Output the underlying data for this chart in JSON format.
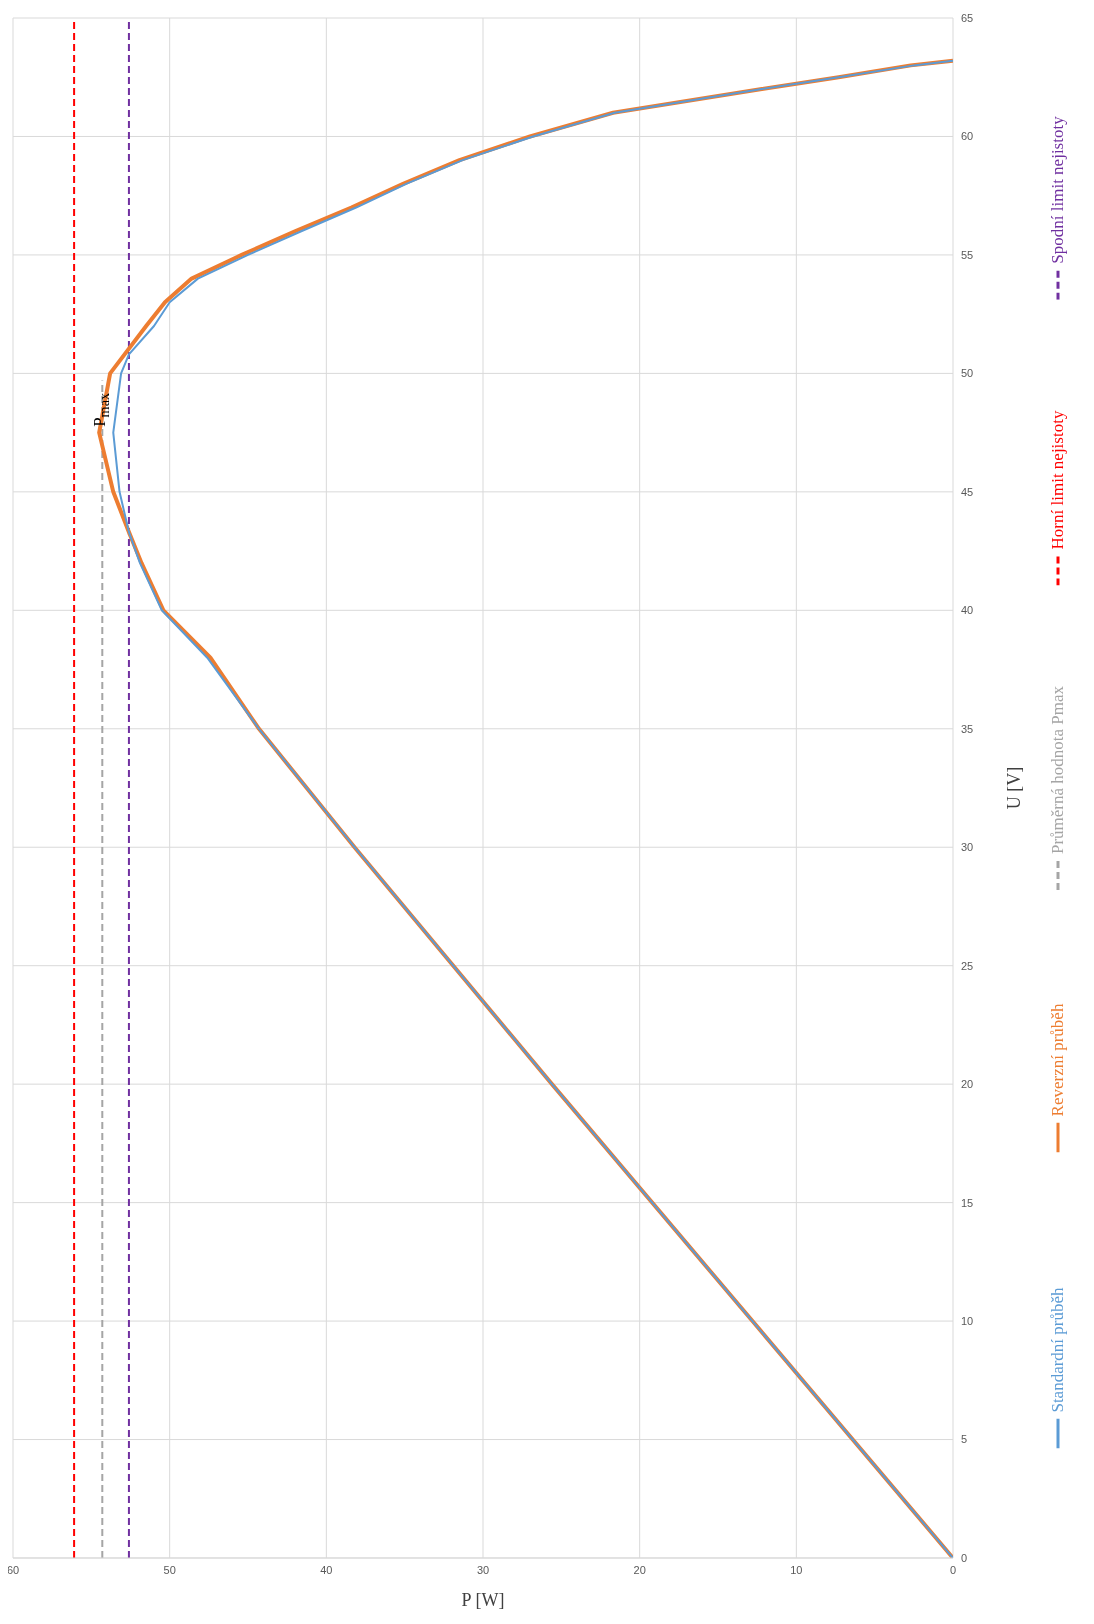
{
  "chart_data": {
    "type": "line",
    "xlabel": "P [W]",
    "ylabel": "U [V]",
    "xlim": [
      60,
      0
    ],
    "xticks": [
      60,
      50,
      40,
      30,
      20,
      10,
      0
    ],
    "ylim": [
      0,
      65
    ],
    "yticks": [
      0,
      5,
      10,
      15,
      20,
      25,
      30,
      35,
      40,
      45,
      50,
      55,
      60,
      65
    ],
    "grid": true,
    "legend": "right",
    "marker": "none",
    "annotations": [
      "P$_{max}$"
    ],
    "series": [
      {
        "name": "Standardní průběh",
        "color": "#5b9bd5",
        "line_style": "solid",
        "x": [
          0,
          12.8,
          25.6,
          38.2,
          44.3,
          47.6,
          50.5,
          51.9,
          52.6,
          53.2,
          53.6,
          53.1,
          52.6,
          51.0,
          50.0,
          48.2,
          45.0,
          41.6,
          38.1,
          34.9,
          31.3,
          26.8,
          21.6,
          12.2,
          7.3,
          2.5,
          0
        ],
        "values": [
          0,
          10,
          20,
          30,
          35,
          38,
          40,
          42,
          43.3,
          45,
          47.5,
          50,
          50.8,
          52,
          53,
          54,
          55,
          56,
          57,
          58,
          59,
          60,
          61,
          62,
          62.5,
          63,
          63.2
        ]
      },
      {
        "name": "Reverzní průběh",
        "color": "#ed7d31",
        "line_style": "solid",
        "x": [
          0,
          12.8,
          25.6,
          38.2,
          44.3,
          47.4,
          50.4,
          51.8,
          52.6,
          53.6,
          54.5,
          53.8,
          51.5,
          50.3,
          48.6,
          45.4,
          42.0,
          38.4,
          35.1,
          31.5,
          27.0,
          21.7,
          12.2,
          7.3,
          2.7,
          0
        ],
        "values": [
          0,
          10,
          20,
          30,
          35,
          38,
          40,
          42,
          43.3,
          45,
          47.5,
          50,
          52,
          53,
          54,
          55,
          56,
          57,
          58,
          59,
          60,
          61,
          62,
          62.5,
          63,
          63.2
        ]
      },
      {
        "name": "Průměrná hodnota Pmax",
        "color": "#a5a5a5",
        "line_style": "dashed",
        "x": [
          54.3,
          54.3
        ],
        "values": [
          0,
          49.7
        ]
      },
      {
        "name": "Horní limit nejistoty",
        "color": "#ff0000",
        "line_style": "dashed",
        "x": [
          56.1,
          56.1
        ],
        "values": [
          0,
          65
        ]
      },
      {
        "name": "Spodní limit nejistoty",
        "color": "#7030a0",
        "line_style": "dashed",
        "x": [
          52.6,
          52.6
        ],
        "values": [
          0,
          65
        ]
      }
    ]
  }
}
